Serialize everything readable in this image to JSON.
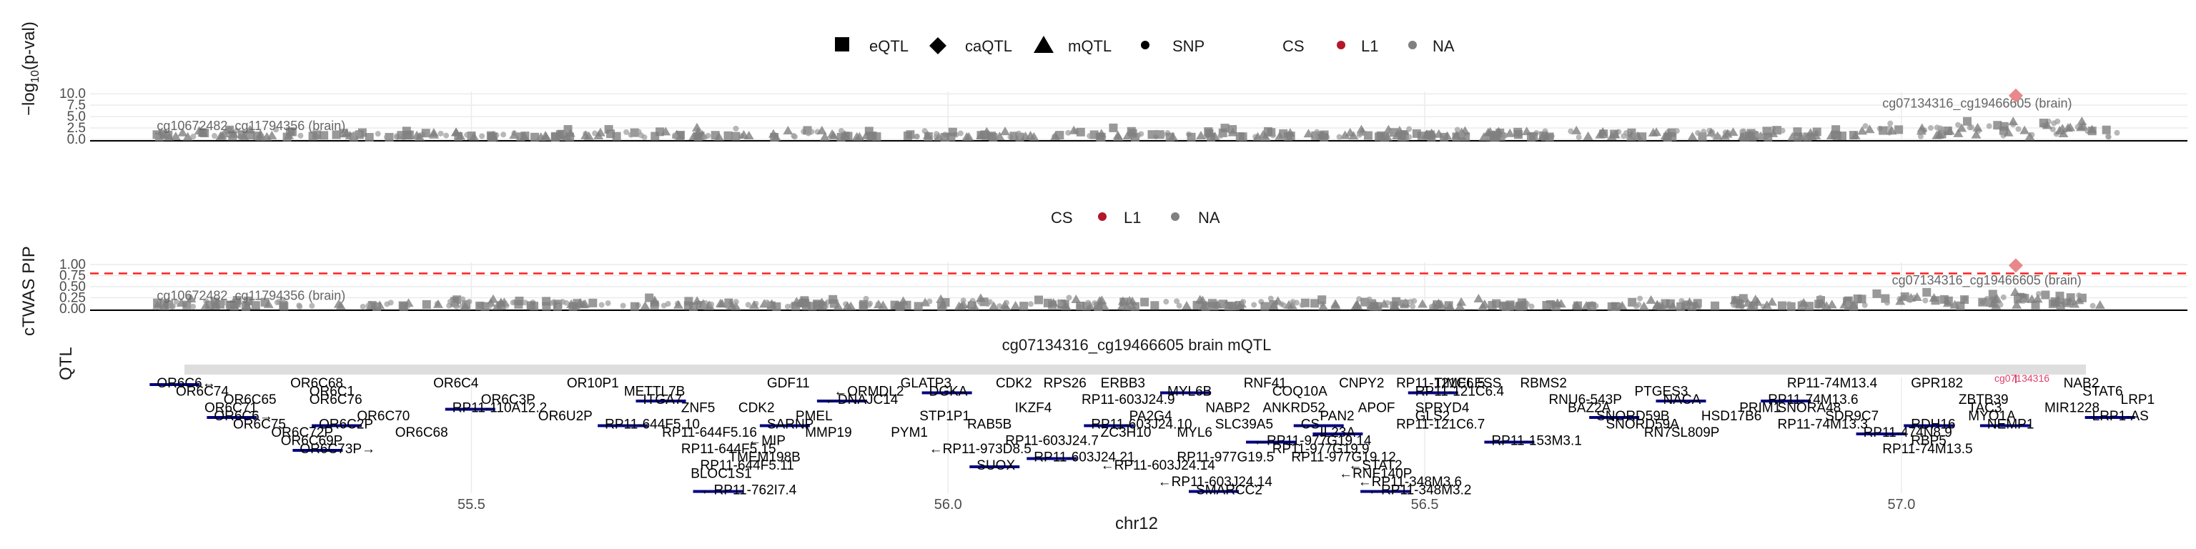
{
  "legend_top": {
    "items": [
      {
        "label": "eQTL",
        "shape": "square-icon"
      },
      {
        "label": "caQTL",
        "shape": "diamond-icon"
      },
      {
        "label": "mQTL",
        "shape": "triangle-icon"
      },
      {
        "label": "SNP",
        "shape": "dot-icon"
      }
    ],
    "cs_title": "CS",
    "cs_items": [
      {
        "label": "L1",
        "color": "#b2182b"
      },
      {
        "label": "NA",
        "color": "#808080"
      }
    ]
  },
  "legend_mid": {
    "cs_title": "CS",
    "cs_items": [
      {
        "label": "L1",
        "color": "#b2182b"
      },
      {
        "label": "NA",
        "color": "#808080"
      }
    ]
  },
  "chart_data": [
    {
      "type": "scatter",
      "ylabel": "-log10(p-val)",
      "yticks": [
        "0.0",
        "2.5",
        "5.0",
        "7.5",
        "10.0"
      ],
      "ylim": [
        0,
        10.5
      ],
      "xlim": [
        55.1,
        57.3
      ],
      "annotations": [
        {
          "text": "cg10672482_cg11794356 (brain)",
          "x": 55.17,
          "y": 2.0
        },
        {
          "text": "cg07134316_cg19466605 (brain)",
          "x": 56.98,
          "y": 7.0
        }
      ],
      "highlight": {
        "x": 57.12,
        "y": 9.6,
        "cs": "L1"
      }
    },
    {
      "type": "scatter",
      "ylabel": "cTWAS PIP",
      "yticks": [
        "0.00",
        "0.25",
        "0.50",
        "0.75",
        "1.00"
      ],
      "ylim": [
        0,
        1.05
      ],
      "xlim": [
        55.1,
        57.3
      ],
      "threshold": 0.8,
      "annotations": [
        {
          "text": "cg10672482_cg11794356 (brain)",
          "x": 55.17,
          "y": 0.2
        },
        {
          "text": "cg07134316_cg19466605 (brain)",
          "x": 56.99,
          "y": 0.55
        }
      ],
      "highlight": {
        "x": 57.12,
        "y": 0.98,
        "cs": "L1"
      }
    },
    {
      "type": "gene-track",
      "title": "cg07134316_cg19466605 brain mQTL",
      "ylabel": "QTL",
      "xlabel": "chr12",
      "xticks": [
        "55.5",
        "56.0",
        "56.5",
        "57.0"
      ],
      "xlim": [
        55.1,
        57.3
      ],
      "genes": [
        {
          "label": "OR6C6↔",
          "x": 55.17,
          "row": 0
        },
        {
          "label": "OR6C65",
          "x": 55.24,
          "row": 2
        },
        {
          "label": "OR6C74",
          "x": 55.19,
          "row": 1
        },
        {
          "label": "OR6C71",
          "x": 55.22,
          "row": 3
        },
        {
          "label": "OR6C6→",
          "x": 55.23,
          "row": 4
        },
        {
          "label": "OR6C75",
          "x": 55.25,
          "row": 5
        },
        {
          "label": "OR6C72P",
          "x": 55.29,
          "row": 6
        },
        {
          "label": "OR6C69P",
          "x": 55.3,
          "row": 7
        },
        {
          "label": "OR6C73P→",
          "x": 55.32,
          "row": 8
        },
        {
          "label": "OR6C68",
          "x": 55.31,
          "row": 0
        },
        {
          "label": "OR6C76",
          "x": 55.33,
          "row": 2
        },
        {
          "label": "OR6C70",
          "x": 55.38,
          "row": 4
        },
        {
          "label": "OR6C2P",
          "x": 55.34,
          "row": 5
        },
        {
          "label": "OR6C68",
          "x": 55.42,
          "row": 6
        },
        {
          "label": "OR6C1",
          "x": 55.33,
          "row": 1
        },
        {
          "label": "OR6C4",
          "x": 55.46,
          "row": 0
        },
        {
          "label": "RP11-110A12.2",
          "x": 55.48,
          "row": 3
        },
        {
          "label": "OR6C3P",
          "x": 55.51,
          "row": 2
        },
        {
          "label": "OR10P1",
          "x": 55.6,
          "row": 0
        },
        {
          "label": "OR6U2P",
          "x": 55.57,
          "row": 4
        },
        {
          "label": "RP11-644F5.10",
          "x": 55.64,
          "row": 5
        },
        {
          "label": "RP11-644F5.16",
          "x": 55.7,
          "row": 6
        },
        {
          "label": "RP11-644F5.15",
          "x": 55.72,
          "row": 8
        },
        {
          "label": "METTL7B",
          "x": 55.66,
          "row": 1
        },
        {
          "label": "ITGA7",
          "x": 55.68,
          "row": 2
        },
        {
          "label": "ZNF5",
          "x": 55.72,
          "row": 3
        },
        {
          "label": "BLOC1S1",
          "x": 55.73,
          "row": 11
        },
        {
          "label": "RP11-644F5.11",
          "x": 55.74,
          "row": 10
        },
        {
          "label": "←RP11-762I7.4",
          "x": 55.74,
          "row": 13
        },
        {
          "label": "GDF11",
          "x": 55.81,
          "row": 0
        },
        {
          "label": "CDK2",
          "x": 55.78,
          "row": 3
        },
        {
          "label": "PMEL",
          "x": 55.84,
          "row": 4
        },
        {
          "label": "SARNP",
          "x": 55.81,
          "row": 5
        },
        {
          "label": "←MIP",
          "x": 55.79,
          "row": 7
        },
        {
          "label": "TMEM198B",
          "x": 55.77,
          "row": 9
        },
        {
          "label": "←ORMDL2",
          "x": 55.88,
          "row": 1
        },
        {
          "label": "←DNAJC14",
          "x": 55.87,
          "row": 2
        },
        {
          "label": "MMP19",
          "x": 55.85,
          "row": 6
        },
        {
          "label": "PYM1",
          "x": 55.94,
          "row": 6
        },
        {
          "label": "GLATP3",
          "x": 55.95,
          "row": 0
        },
        {
          "label": "DGKA",
          "x": 55.98,
          "row": 1
        },
        {
          "label": "STP1P1",
          "x": 55.97,
          "row": 4
        },
        {
          "label": "RAB5B",
          "x": 56.02,
          "row": 5
        },
        {
          "label": "←RP11-973D8.5",
          "x": 55.98,
          "row": 8
        },
        {
          "label": "SUOX",
          "x": 56.03,
          "row": 10
        },
        {
          "label": "CDK2",
          "x": 56.05,
          "row": 0
        },
        {
          "label": "IKZF4",
          "x": 56.07,
          "row": 3
        },
        {
          "label": "RP11-603J24.7",
          "x": 56.06,
          "row": 7
        },
        {
          "label": "RP11-603J24.21",
          "x": 56.09,
          "row": 9
        },
        {
          "label": "RPS26",
          "x": 56.1,
          "row": 0
        },
        {
          "label": "ERBB3",
          "x": 56.16,
          "row": 0
        },
        {
          "label": "RP11-603J24.9",
          "x": 56.14,
          "row": 2
        },
        {
          "label": "RP11-603J24.10",
          "x": 56.15,
          "row": 5
        },
        {
          "label": "ZC3H10",
          "x": 56.16,
          "row": 6
        },
        {
          "label": "←RP11-603J24.14",
          "x": 56.16,
          "row": 10
        },
        {
          "label": "PA2G4",
          "x": 56.19,
          "row": 4
        },
        {
          "label": "MYL6B",
          "x": 56.23,
          "row": 1
        },
        {
          "label": "MYL6",
          "x": 56.24,
          "row": 6
        },
        {
          "label": "RP11-977G19.5",
          "x": 56.24,
          "row": 9
        },
        {
          "label": "←RP11-603J24.14",
          "x": 56.22,
          "row": 12
        },
        {
          "label": "SMARCC2",
          "x": 56.26,
          "row": 13
        },
        {
          "label": "RNF41",
          "x": 56.31,
          "row": 0
        },
        {
          "label": "NABP2",
          "x": 56.27,
          "row": 3
        },
        {
          "label": "SLC39A5",
          "x": 56.28,
          "row": 5
        },
        {
          "label": "←RP11-977G19.14",
          "x": 56.32,
          "row": 7
        },
        {
          "label": "RP11-977G19.9",
          "x": 56.34,
          "row": 8
        },
        {
          "label": "COQ10A",
          "x": 56.34,
          "row": 1
        },
        {
          "label": "ANKRD52",
          "x": 56.33,
          "row": 3
        },
        {
          "label": "CS",
          "x": 56.37,
          "row": 5
        },
        {
          "label": "RP11-977G19.12",
          "x": 56.36,
          "row": 9
        },
        {
          "label": "CNPY2",
          "x": 56.41,
          "row": 0
        },
        {
          "label": "PAN2",
          "x": 56.39,
          "row": 4
        },
        {
          "label": "IL23A",
          "x": 56.39,
          "row": 6
        },
        {
          "label": "←STAT2",
          "x": 56.42,
          "row": 10
        },
        {
          "label": "←RNF140P",
          "x": 56.41,
          "row": 11
        },
        {
          "label": "←RP11-348M3.6",
          "x": 56.43,
          "row": 12
        },
        {
          "label": "←RP11-348M3.2",
          "x": 56.44,
          "row": 13
        },
        {
          "label": "APOF",
          "x": 56.43,
          "row": 3
        },
        {
          "label": "RP11-121C6.5",
          "x": 56.47,
          "row": 0
        },
        {
          "label": "TIMELESS",
          "x": 56.51,
          "row": 0
        },
        {
          "label": "RP11-121C6.4",
          "x": 56.49,
          "row": 1
        },
        {
          "label": "RP11-121C6.7",
          "x": 56.47,
          "row": 5
        },
        {
          "label": "SPRYD4",
          "x": 56.49,
          "row": 3
        },
        {
          "label": "GLS2",
          "x": 56.49,
          "row": 4
        },
        {
          "label": "RP11-153M3.1",
          "x": 56.57,
          "row": 7
        },
        {
          "label": "RBMS2",
          "x": 56.6,
          "row": 0
        },
        {
          "label": "RNU6-543P",
          "x": 56.63,
          "row": 2
        },
        {
          "label": "BAZ2A",
          "x": 56.65,
          "row": 3
        },
        {
          "label": "SNORD59B",
          "x": 56.68,
          "row": 4
        },
        {
          "label": "SNORD59A",
          "x": 56.69,
          "row": 5
        },
        {
          "label": "RN7SL809P",
          "x": 56.73,
          "row": 6
        },
        {
          "label": "PTGES3",
          "x": 56.72,
          "row": 1
        },
        {
          "label": "NACA",
          "x": 56.75,
          "row": 2
        },
        {
          "label": "PRIM1",
          "x": 56.83,
          "row": 3
        },
        {
          "label": "HSD17B6",
          "x": 56.79,
          "row": 4
        },
        {
          "label": "RP11-74M13.4",
          "x": 56.88,
          "row": 0
        },
        {
          "label": "RP11-74M13.6",
          "x": 56.86,
          "row": 2
        },
        {
          "label": "SNORA48",
          "x": 56.87,
          "row": 3
        },
        {
          "label": "RP11-74M13.3",
          "x": 56.87,
          "row": 5
        },
        {
          "label": "SDR9C7",
          "x": 56.92,
          "row": 4
        },
        {
          "label": "RP11-474N8.9",
          "x": 56.96,
          "row": 6
        },
        {
          "label": "RP11-74M13.5",
          "x": 56.98,
          "row": 8
        },
        {
          "label": "GPR182",
          "x": 57.01,
          "row": 0
        },
        {
          "label": "ZBTB39",
          "x": 57.06,
          "row": 2
        },
        {
          "label": "RDH16",
          "x": 57.01,
          "row": 5
        },
        {
          "label": "RBP5",
          "x": 57.01,
          "row": 7
        },
        {
          "label": "TAC3",
          "x": 57.07,
          "row": 3
        },
        {
          "label": "MYO1A",
          "x": 57.07,
          "row": 4
        },
        {
          "label": "NEMP1",
          "x": 57.09,
          "row": 5
        },
        {
          "label": "NAB2",
          "x": 57.17,
          "row": 0
        },
        {
          "label": "STAT6",
          "x": 57.19,
          "row": 1
        },
        {
          "label": "LRP1",
          "x": 57.23,
          "row": 2
        },
        {
          "label": "LRP1-AS",
          "x": 57.2,
          "row": 4
        },
        {
          "label": "MIR1228",
          "x": 57.15,
          "row": 3
        }
      ],
      "highlight_marker": {
        "x": 57.12,
        "label": "cg07134316"
      }
    }
  ]
}
